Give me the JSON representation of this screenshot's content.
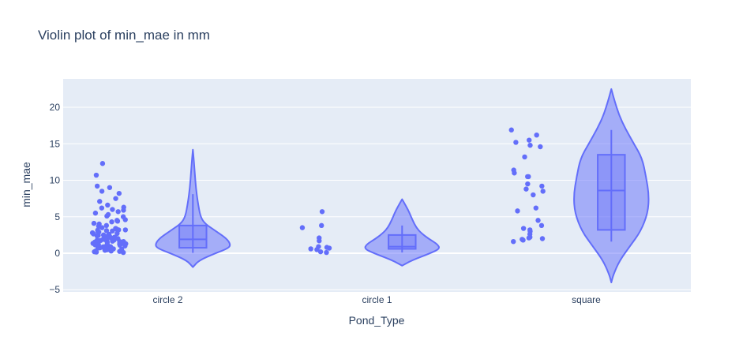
{
  "chart_data": {
    "type": "violin",
    "title": "Violin plot of min_mae in mm",
    "xlabel": "Pond_Type",
    "ylabel": "min_mae",
    "categories": [
      "circle 2",
      "circle 1",
      "square"
    ],
    "ylim": [
      -5.3,
      23.9
    ],
    "yticks": [
      -5,
      0,
      5,
      10,
      15,
      20
    ],
    "ytick_labels": [
      "−5",
      "0",
      "5",
      "10",
      "15",
      "20"
    ],
    "grid": true,
    "colors": {
      "plot_bg": "#e5ecf6",
      "grid": "#ffffff",
      "series": "#636efa",
      "text": "#2a3f5f"
    },
    "violins": [
      {
        "category": "circle 2",
        "box": {
          "min": 0.05,
          "q1": 0.75,
          "median": 1.9,
          "q3": 3.8,
          "max": 8.1
        },
        "kde_range": [
          -1.9,
          14.2
        ],
        "density": [
          [
            -1.9,
            0.0
          ],
          [
            -1.0,
            0.16
          ],
          [
            0.0,
            0.6
          ],
          [
            0.7,
            0.95
          ],
          [
            1.2,
            1.0
          ],
          [
            2.0,
            0.9
          ],
          [
            3.0,
            0.62
          ],
          [
            4.0,
            0.33
          ],
          [
            5.0,
            0.2
          ],
          [
            7.0,
            0.13
          ],
          [
            9.0,
            0.08
          ],
          [
            11.0,
            0.05
          ],
          [
            13.0,
            0.02
          ],
          [
            14.2,
            0.0
          ]
        ],
        "points": [
          0.1,
          0.2,
          0.3,
          0.4,
          0.5,
          0.6,
          0.7,
          0.8,
          0.9,
          1.0,
          1.1,
          1.2,
          1.3,
          1.4,
          1.5,
          1.6,
          1.7,
          1.8,
          1.9,
          2.0,
          2.1,
          2.2,
          2.3,
          2.4,
          2.5,
          2.6,
          2.8,
          3.0,
          3.1,
          3.2,
          3.3,
          3.5,
          3.8,
          4.0,
          4.3,
          4.6,
          5.0,
          5.3,
          5.7,
          6.0,
          6.3,
          6.6,
          7.1,
          7.5,
          8.2,
          8.5,
          9.0,
          9.2,
          10.7,
          12.3,
          0.15,
          0.25,
          0.35,
          0.45,
          0.55,
          0.65,
          0.75,
          0.85,
          0.95,
          1.05,
          1.15,
          1.25,
          1.35,
          1.45,
          1.55,
          1.65,
          1.75,
          1.85,
          1.95,
          2.05,
          2.25,
          2.45,
          2.65,
          2.9,
          3.05,
          3.15,
          3.4,
          3.7,
          4.1,
          4.5,
          5.1,
          5.5,
          6.2,
          0.3,
          0.5,
          0.7,
          0.9,
          1.2,
          1.4,
          1.6,
          1.8,
          2.2,
          2.7,
          3.2,
          4.4,
          5.9
        ]
      },
      {
        "category": "circle 1",
        "box": {
          "min": 0.1,
          "q1": 0.6,
          "median": 0.9,
          "q3": 2.5,
          "max": 3.8
        },
        "kde_range": [
          -1.7,
          7.4
        ],
        "density": [
          [
            -1.7,
            0.0
          ],
          [
            -1.0,
            0.25
          ],
          [
            0.0,
            0.75
          ],
          [
            0.6,
            1.0
          ],
          [
            1.2,
            0.95
          ],
          [
            2.0,
            0.7
          ],
          [
            2.8,
            0.5
          ],
          [
            3.5,
            0.38
          ],
          [
            4.5,
            0.28
          ],
          [
            5.5,
            0.2
          ],
          [
            6.5,
            0.1
          ],
          [
            7.4,
            0.0
          ]
        ],
        "points": [
          0.1,
          0.2,
          0.5,
          0.6,
          0.7,
          0.8,
          0.9,
          1.7,
          2.1,
          3.5,
          3.8,
          5.7
        ]
      },
      {
        "category": "square",
        "box": {
          "min": 1.6,
          "q1": 3.2,
          "median": 8.6,
          "q3": 13.5,
          "max": 16.9
        },
        "kde_range": [
          -4.0,
          22.5
        ],
        "density": [
          [
            -4.0,
            0.0
          ],
          [
            -3.0,
            0.05
          ],
          [
            -1.0,
            0.22
          ],
          [
            1.0,
            0.5
          ],
          [
            3.0,
            0.78
          ],
          [
            5.5,
            0.97
          ],
          [
            8.0,
            1.0
          ],
          [
            10.5,
            0.92
          ],
          [
            13.0,
            0.82
          ],
          [
            15.0,
            0.6
          ],
          [
            17.0,
            0.38
          ],
          [
            19.0,
            0.2
          ],
          [
            21.0,
            0.08
          ],
          [
            22.5,
            0.0
          ]
        ],
        "points": [
          1.6,
          1.8,
          1.9,
          2.0,
          2.1,
          2.2,
          2.6,
          3.0,
          3.2,
          3.4,
          3.8,
          4.5,
          5.8,
          6.2,
          8.0,
          8.5,
          8.8,
          9.2,
          9.5,
          10.5,
          10.5,
          11.0,
          11.4,
          13.2,
          14.6,
          14.8,
          15.2,
          15.5,
          16.2,
          16.9
        ]
      }
    ]
  }
}
